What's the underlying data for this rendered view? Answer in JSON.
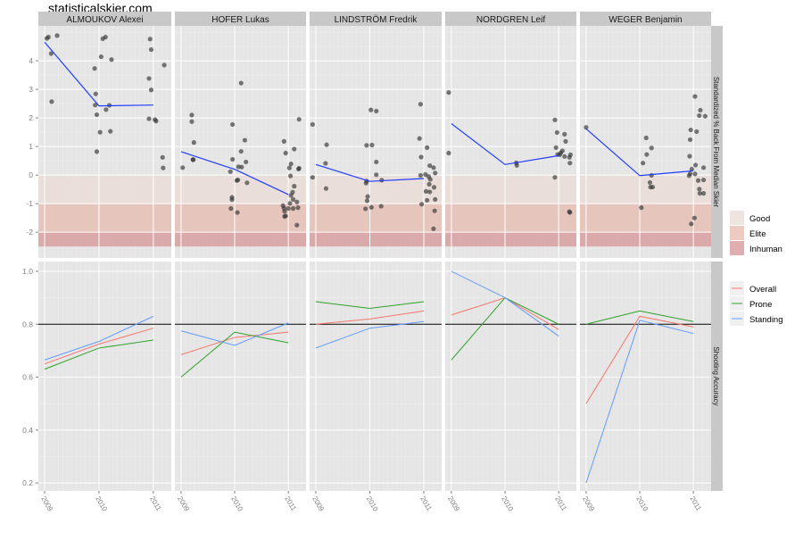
{
  "site_title": "statisticalskier.com",
  "chart_data": {
    "type": "scatter",
    "title": "statisticalskier.com",
    "x": [
      2009,
      2010,
      2011
    ],
    "x_tick_labels": [
      "2009",
      "2010",
      "2011"
    ],
    "xlim": [
      2008.885,
      2011.33
    ],
    "top_panel": {
      "ylabel": "Standardized % Back From Median Skier",
      "ylim": [
        -2.9,
        5.22
      ],
      "y_ticks": [
        -2,
        -1,
        0,
        1,
        2,
        3,
        4
      ],
      "y_tick_labels": [
        "-2",
        "-1",
        "0",
        "1",
        "2",
        "3",
        "4"
      ],
      "bands": [
        {
          "name": "Good",
          "from": -1,
          "to": 0,
          "color": "#e9ddd8"
        },
        {
          "name": "Elite",
          "from": -2,
          "to": -1,
          "color": "#e6c3b8"
        },
        {
          "name": "Inhuman",
          "from": -2.5,
          "to": -2,
          "color": "#d9a5a6"
        }
      ],
      "trend_color": "#1f3dff",
      "point_color": "#333333"
    },
    "bottom_panel": {
      "ylabel": "Shooting Accuracy",
      "ylim": [
        0.17,
        1.037
      ],
      "y_ticks": [
        0.2,
        0.4,
        0.6,
        0.8,
        1.0
      ],
      "y_tick_labels": [
        "0.2",
        "0.4",
        "0.6",
        "0.8",
        "1.0"
      ],
      "reference_line": 0.8
    },
    "legend_bands": {
      "placement": "right",
      "entries": [
        {
          "label": "Good",
          "color": "#efe4df"
        },
        {
          "label": "Elite",
          "color": "#eecbc1"
        },
        {
          "label": "Inhuman",
          "color": "#e0aeb0"
        }
      ]
    },
    "legend_series": {
      "placement": "right",
      "entries": [
        {
          "label": "Overall",
          "color": "#F8766D"
        },
        {
          "label": "Prone",
          "color": "#2fa12a"
        },
        {
          "label": "Standing",
          "color": "#619CFF"
        }
      ]
    },
    "facets": [
      {
        "name": "ALMOUKOV Alexei",
        "trend": [
          4.65,
          2.42,
          2.45
        ],
        "shooting": {
          "Overall": [
            0.65,
            0.725,
            0.785
          ],
          "Prone": [
            0.63,
            0.71,
            0.74
          ],
          "Standing": [
            0.665,
            0.735,
            0.83
          ]
        },
        "points": [
          [
            2009.04,
            4.78
          ],
          [
            2009.07,
            4.83
          ],
          [
            2009.23,
            4.88
          ],
          [
            2009.12,
            4.25
          ],
          [
            2009.13,
            2.57
          ],
          [
            2009.92,
            3.73
          ],
          [
            2009.94,
            2.84
          ],
          [
            2009.93,
            2.45
          ],
          [
            2009.96,
            2.11
          ],
          [
            2010.02,
            1.5
          ],
          [
            2009.96,
            0.82
          ],
          [
            2010.04,
            4.14
          ],
          [
            2010.07,
            4.77
          ],
          [
            2010.12,
            4.83
          ],
          [
            2010.23,
            4.04
          ],
          [
            2010.13,
            2.29
          ],
          [
            2010.19,
            2.44
          ],
          [
            2010.21,
            1.53
          ],
          [
            2010.94,
            4.76
          ],
          [
            2010.96,
            4.39
          ],
          [
            2010.92,
            3.38
          ],
          [
            2010.96,
            2.98
          ],
          [
            2010.92,
            1.97
          ],
          [
            2011.03,
            1.94
          ],
          [
            2011.05,
            1.89
          ],
          [
            2011.2,
            3.85
          ],
          [
            2011.17,
            0.62
          ],
          [
            2011.18,
            0.25
          ]
        ]
      },
      {
        "name": "HOFER Lukas",
        "trend": [
          0.82,
          0.2,
          -0.68
        ],
        "shooting": {
          "Overall": [
            0.685,
            0.75,
            0.77
          ],
          "Prone": [
            0.6,
            0.77,
            0.73
          ],
          "Standing": [
            0.775,
            0.72,
            0.805
          ]
        },
        "points": [
          [
            2009.03,
            0.26
          ],
          [
            2009.2,
            2.1
          ],
          [
            2009.2,
            1.87
          ],
          [
            2009.24,
            1.14
          ],
          [
            2009.22,
            0.54
          ],
          [
            2009.23,
            0.54
          ],
          [
            2009.96,
            1.77
          ],
          [
            2009.96,
            0.55
          ],
          [
            2009.92,
            0.12
          ],
          [
            2009.95,
            -0.78
          ],
          [
            2009.95,
            -0.86
          ],
          [
            2009.93,
            -1.17
          ],
          [
            2010.05,
            -1.31
          ],
          [
            2010.04,
            -0.19
          ],
          [
            2010.06,
            -0.17
          ],
          [
            2010.07,
            0.29
          ],
          [
            2010.13,
            0.28
          ],
          [
            2010.12,
            0.83
          ],
          [
            2010.12,
            3.22
          ],
          [
            2010.19,
            1.22
          ],
          [
            2010.21,
            0.46
          ],
          [
            2010.23,
            -0.27
          ],
          [
            2010.92,
            1.18
          ],
          [
            2010.95,
            0.77
          ],
          [
            2011.02,
            0.25
          ],
          [
            2011.04,
            -0.03
          ],
          [
            2011.05,
            0.39
          ],
          [
            2011.11,
            0.91
          ],
          [
            2011.11,
            -0.39
          ],
          [
            2011.08,
            -0.6
          ],
          [
            2011.05,
            -0.71
          ],
          [
            2011.03,
            -0.99
          ],
          [
            2011.09,
            -0.85
          ],
          [
            2010.9,
            -1.07
          ],
          [
            2010.92,
            -1.16
          ],
          [
            2010.93,
            -1.27
          ],
          [
            2010.95,
            -1.43
          ],
          [
            2010.93,
            -1.45
          ],
          [
            2011.0,
            -1.17
          ],
          [
            2011.09,
            -1.17
          ],
          [
            2011.16,
            -0.94
          ],
          [
            2011.18,
            -1.14
          ],
          [
            2011.16,
            -1.75
          ],
          [
            2011.2,
            1.95
          ],
          [
            2011.2,
            0.24
          ],
          [
            2011.19,
            0.21
          ]
        ]
      },
      {
        "name": "LINDSTRÖM Fredrik",
        "trend": [
          0.37,
          -0.22,
          -0.12
        ],
        "shooting": {
          "Overall": [
            0.8,
            0.82,
            0.85
          ],
          "Prone": [
            0.885,
            0.86,
            0.885
          ],
          "Standing": [
            0.71,
            0.785,
            0.81
          ]
        },
        "points": [
          [
            2008.94,
            1.77
          ],
          [
            2008.94,
            -0.08
          ],
          [
            2009.2,
            1.06
          ],
          [
            2009.18,
            0.41
          ],
          [
            2009.19,
            -0.47
          ],
          [
            2010.02,
            2.28
          ],
          [
            2010.12,
            2.24
          ],
          [
            2009.94,
            1.04
          ],
          [
            2010.04,
            1.05
          ],
          [
            2010.12,
            0.46
          ],
          [
            2010.12,
            0.01
          ],
          [
            2009.94,
            -0.21
          ],
          [
            2009.93,
            -0.28
          ],
          [
            2010.22,
            -0.18
          ],
          [
            2009.96,
            -0.75
          ],
          [
            2009.95,
            -0.9
          ],
          [
            2009.92,
            -1.18
          ],
          [
            2010.03,
            -1.13
          ],
          [
            2010.21,
            -1.09
          ],
          [
            2010.94,
            2.48
          ],
          [
            2010.92,
            1.28
          ],
          [
            2010.95,
            0.63
          ],
          [
            2011.06,
            0.96
          ],
          [
            2010.94,
            -0.01
          ],
          [
            2011.03,
            0.02
          ],
          [
            2011.09,
            -0.05
          ],
          [
            2011.11,
            0.33
          ],
          [
            2011.18,
            0.26
          ],
          [
            2011.21,
            0.07
          ],
          [
            2011.12,
            -0.15
          ],
          [
            2011.1,
            -0.32
          ],
          [
            2011.19,
            -0.43
          ],
          [
            2011.04,
            -0.57
          ],
          [
            2011.11,
            -0.59
          ],
          [
            2011.06,
            -0.88
          ],
          [
            2011.21,
            -0.85
          ],
          [
            2010.96,
            -1.02
          ],
          [
            2011.2,
            -1.25
          ],
          [
            2011.18,
            -1.88
          ]
        ]
      },
      {
        "name": "NORDGREN Leif",
        "trend": [
          1.8,
          0.37,
          0.68
        ],
        "shooting": {
          "Overall": [
            0.835,
            0.9,
            0.78
          ],
          "Prone": [
            0.665,
            0.9,
            0.8
          ],
          "Standing": [
            1.0,
            0.9,
            0.755
          ]
        },
        "points": [
          [
            2008.95,
            2.89
          ],
          [
            2008.95,
            0.77
          ],
          [
            2010.21,
            0.43
          ],
          [
            2010.22,
            0.34
          ],
          [
            2010.93,
            1.93
          ],
          [
            2010.97,
            1.49
          ],
          [
            2011.11,
            1.43
          ],
          [
            2011.13,
            1.18
          ],
          [
            2010.95,
            0.96
          ],
          [
            2011.07,
            0.85
          ],
          [
            2011.04,
            0.78
          ],
          [
            2010.98,
            0.72
          ],
          [
            2011.02,
            0.71
          ],
          [
            2011.11,
            0.65
          ],
          [
            2011.2,
            0.62
          ],
          [
            2011.22,
            0.71
          ],
          [
            2011.21,
            0.42
          ],
          [
            2010.93,
            -0.08
          ],
          [
            2011.2,
            -1.28
          ],
          [
            2011.21,
            -1.31
          ]
        ]
      },
      {
        "name": "WEGER Benjamin",
        "trend": [
          1.62,
          -0.02,
          0.15
        ],
        "shooting": {
          "Overall": [
            0.5,
            0.83,
            0.79
          ],
          "Prone": [
            0.8,
            0.85,
            0.81
          ],
          "Standing": [
            0.2,
            0.815,
            0.765
          ]
        },
        "points": [
          [
            2009.0,
            1.67
          ],
          [
            2010.12,
            1.3
          ],
          [
            2010.22,
            0.95
          ],
          [
            2010.13,
            0.72
          ],
          [
            2010.06,
            0.42
          ],
          [
            2010.22,
            -0.01
          ],
          [
            2010.19,
            -0.26
          ],
          [
            2010.2,
            -0.42
          ],
          [
            2010.24,
            -0.42
          ],
          [
            2010.03,
            -1.14
          ],
          [
            2011.03,
            2.75
          ],
          [
            2011.13,
            2.27
          ],
          [
            2011.11,
            2.08
          ],
          [
            2011.22,
            2.06
          ],
          [
            2010.95,
            1.58
          ],
          [
            2011.06,
            1.52
          ],
          [
            2010.94,
            1.24
          ],
          [
            2010.93,
            0.66
          ],
          [
            2011.04,
            0.35
          ],
          [
            2011.19,
            0.26
          ],
          [
            2010.97,
            0.21
          ],
          [
            2010.94,
            0.05
          ],
          [
            2011.03,
            0.04
          ],
          [
            2010.92,
            -0.02
          ],
          [
            2011.09,
            -0.19
          ],
          [
            2011.19,
            -0.17
          ],
          [
            2011.11,
            -0.49
          ],
          [
            2011.12,
            -0.64
          ],
          [
            2011.19,
            -0.64
          ],
          [
            2011.02,
            -1.5
          ],
          [
            2010.96,
            -1.71
          ]
        ]
      }
    ]
  }
}
